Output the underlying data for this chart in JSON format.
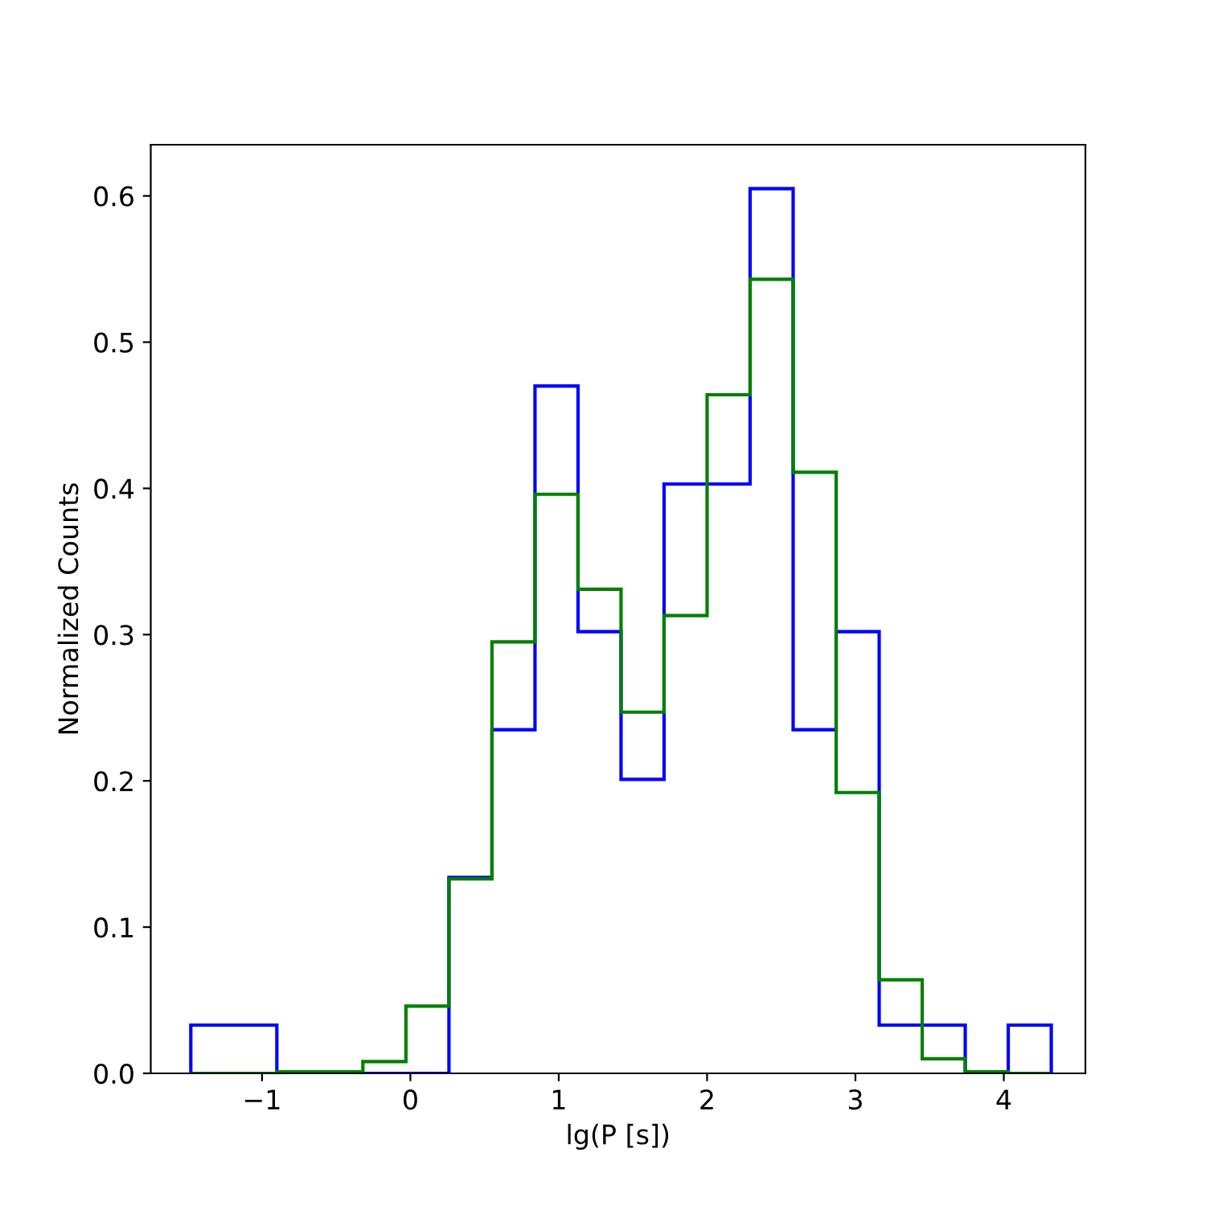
{
  "chart_data": {
    "type": "histogram",
    "xlabel": "lg(P [s])",
    "ylabel": "Normalized Counts",
    "bins": [
      -1.48,
      -1.19,
      -0.9,
      -0.61,
      -0.32,
      -0.03,
      0.26,
      0.55,
      0.84,
      1.13,
      1.42,
      1.71,
      2.0,
      2.29,
      2.58,
      2.87,
      3.16,
      3.45,
      3.74,
      4.03,
      4.32
    ],
    "series": [
      {
        "color": "#0000ff",
        "values": [
          0.033,
          0.033,
          0,
          0,
          0,
          0,
          0.134,
          0.235,
          0.47,
          0.302,
          0.201,
          0.403,
          0.403,
          0.605,
          0.235,
          0.302,
          0.033,
          0.033,
          0,
          0.033
        ]
      },
      {
        "color": "#008000",
        "values": [
          0,
          0,
          0.001,
          0.001,
          0.008,
          0.046,
          0.133,
          0.295,
          0.396,
          0.331,
          0.247,
          0.313,
          0.464,
          0.543,
          0.411,
          0.192,
          0.064,
          0.01,
          0.001,
          0
        ]
      }
    ],
    "xlim": [
      -1.75,
      4.55
    ],
    "ylim": [
      0,
      0.635
    ],
    "xticks": [
      {
        "value": -1,
        "label": "−1"
      },
      0,
      1,
      2,
      3,
      4
    ],
    "yticks": [
      {
        "value": 0,
        "label": "0.0"
      },
      0.1,
      0.2,
      0.3,
      0.4,
      0.5,
      0.6
    ]
  }
}
